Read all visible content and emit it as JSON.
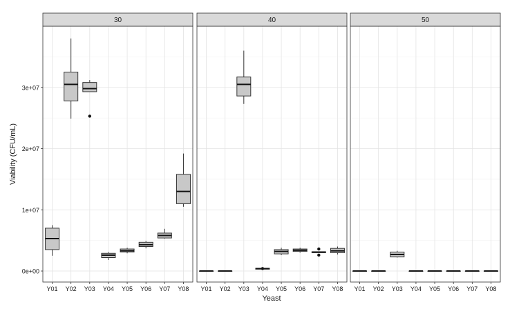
{
  "chart_data": {
    "type": "boxplot",
    "facet_variable_values": [
      "30",
      "40",
      "50"
    ],
    "xlabel": "Yeast",
    "ylabel": "Viability (CFU/mL)",
    "categories": [
      "Y01",
      "Y02",
      "Y03",
      "Y04",
      "Y05",
      "Y06",
      "Y07",
      "Y08"
    ],
    "y_ticks": [
      0,
      10000000,
      20000000,
      30000000
    ],
    "y_tick_labels": [
      "0e+00",
      "1e+07",
      "2e+07",
      "3e+07"
    ],
    "ylim": [
      -1800000,
      40000000
    ],
    "grid": true,
    "box_fill": "#c8c8c8",
    "panels": [
      {
        "facet": "30",
        "boxes": [
          {
            "x": "Y01",
            "min": 2500000,
            "q1": 3500000,
            "median": 5300000,
            "q3": 7000000,
            "max": 7500000,
            "outliers": []
          },
          {
            "x": "Y02",
            "min": 24900000,
            "q1": 27800000,
            "median": 30500000,
            "q3": 32500000,
            "max": 38000000,
            "outliers": []
          },
          {
            "x": "Y03",
            "min": 29300000,
            "q1": 29300000,
            "median": 29800000,
            "q3": 30800000,
            "max": 31200000,
            "outliers": [
              25300000
            ]
          },
          {
            "x": "Y04",
            "min": 1800000,
            "q1": 2200000,
            "median": 2600000,
            "q3": 2900000,
            "max": 3100000,
            "outliers": []
          },
          {
            "x": "Y05",
            "min": 2900000,
            "q1": 3100000,
            "median": 3300000,
            "q3": 3600000,
            "max": 3800000,
            "outliers": []
          },
          {
            "x": "Y06",
            "min": 3700000,
            "q1": 4000000,
            "median": 4300000,
            "q3": 4700000,
            "max": 4900000,
            "outliers": []
          },
          {
            "x": "Y07",
            "min": 5300000,
            "q1": 5400000,
            "median": 5800000,
            "q3": 6200000,
            "max": 6900000,
            "outliers": []
          },
          {
            "x": "Y08",
            "min": 10500000,
            "q1": 11000000,
            "median": 13000000,
            "q3": 15800000,
            "max": 19200000,
            "outliers": []
          }
        ]
      },
      {
        "facet": "40",
        "boxes": [
          {
            "x": "Y01",
            "min": 0,
            "q1": 0,
            "median": 0,
            "q3": 0,
            "max": 0,
            "outliers": []
          },
          {
            "x": "Y02",
            "min": 0,
            "q1": 0,
            "median": 0,
            "q3": 0,
            "max": 0,
            "outliers": []
          },
          {
            "x": "Y03",
            "min": 27300000,
            "q1": 28600000,
            "median": 30500000,
            "q3": 31700000,
            "max": 36000000,
            "outliers": []
          },
          {
            "x": "Y04",
            "min": 300000,
            "q1": 300000,
            "median": 400000,
            "q3": 450000,
            "max": 500000,
            "outliers": [
              400000
            ]
          },
          {
            "x": "Y05",
            "min": 2600000,
            "q1": 2800000,
            "median": 3200000,
            "q3": 3500000,
            "max": 3800000,
            "outliers": []
          },
          {
            "x": "Y06",
            "min": 3000000,
            "q1": 3200000,
            "median": 3400000,
            "q3": 3600000,
            "max": 3800000,
            "outliers": []
          },
          {
            "x": "Y07",
            "min": 3000000,
            "q1": 3000000,
            "median": 3100000,
            "q3": 3150000,
            "max": 3200000,
            "outliers": [
              3600000,
              2600000
            ]
          },
          {
            "x": "Y08",
            "min": 2700000,
            "q1": 3000000,
            "median": 3300000,
            "q3": 3700000,
            "max": 4000000,
            "outliers": []
          }
        ]
      },
      {
        "facet": "50",
        "boxes": [
          {
            "x": "Y01",
            "min": 0,
            "q1": 0,
            "median": 0,
            "q3": 0,
            "max": 0,
            "outliers": []
          },
          {
            "x": "Y02",
            "min": 0,
            "q1": 0,
            "median": 0,
            "q3": 0,
            "max": 0,
            "outliers": []
          },
          {
            "x": "Y03",
            "min": 2200000,
            "q1": 2300000,
            "median": 2700000,
            "q3": 3100000,
            "max": 3300000,
            "outliers": []
          },
          {
            "x": "Y04",
            "min": 0,
            "q1": 0,
            "median": 0,
            "q3": 0,
            "max": 0,
            "outliers": []
          },
          {
            "x": "Y05",
            "min": 0,
            "q1": 0,
            "median": 0,
            "q3": 0,
            "max": 0,
            "outliers": []
          },
          {
            "x": "Y06",
            "min": 0,
            "q1": 0,
            "median": 0,
            "q3": 0,
            "max": 0,
            "outliers": []
          },
          {
            "x": "Y07",
            "min": 0,
            "q1": 0,
            "median": 0,
            "q3": 0,
            "max": 0,
            "outliers": []
          },
          {
            "x": "Y08",
            "min": 0,
            "q1": 0,
            "median": 0,
            "q3": 0,
            "max": 0,
            "outliers": []
          }
        ]
      }
    ]
  }
}
